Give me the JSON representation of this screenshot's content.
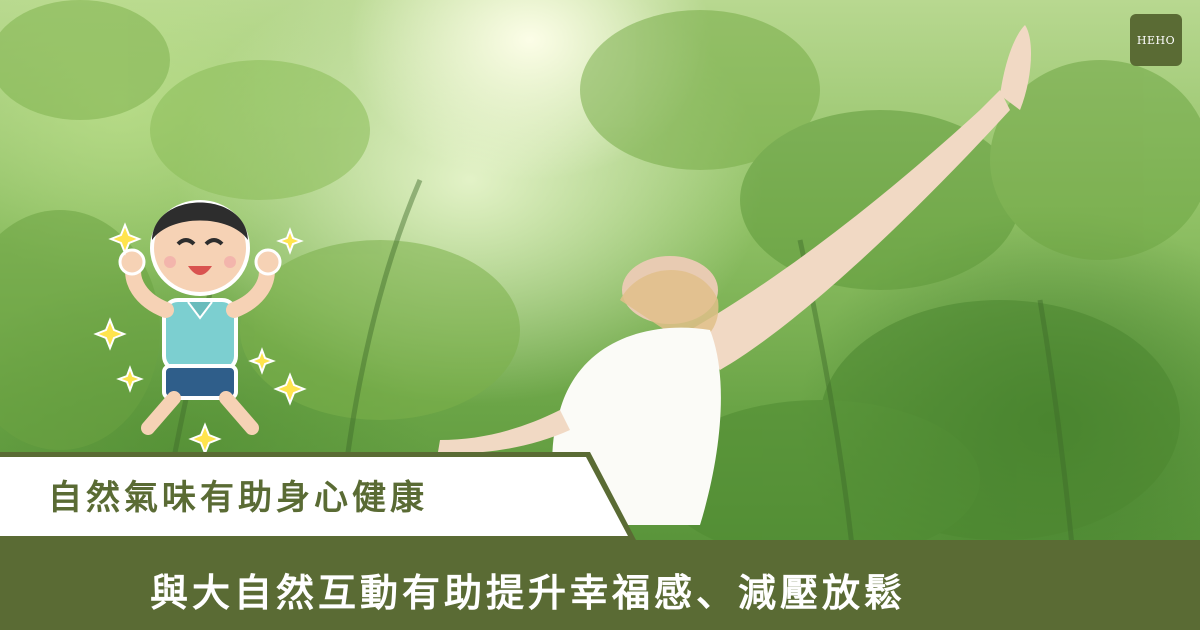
{
  "brand": {
    "logo_text": "HEHO",
    "accent": "#5a6b34"
  },
  "headline": {
    "subtitle": "自然氣味有助身心健康",
    "main": "與大自然互動有助提升幸福感、減壓放鬆"
  },
  "scene": {
    "description_icons": [
      "cartoon-boy-icon",
      "sparkle-icon",
      "woman-figure-icon"
    ]
  }
}
